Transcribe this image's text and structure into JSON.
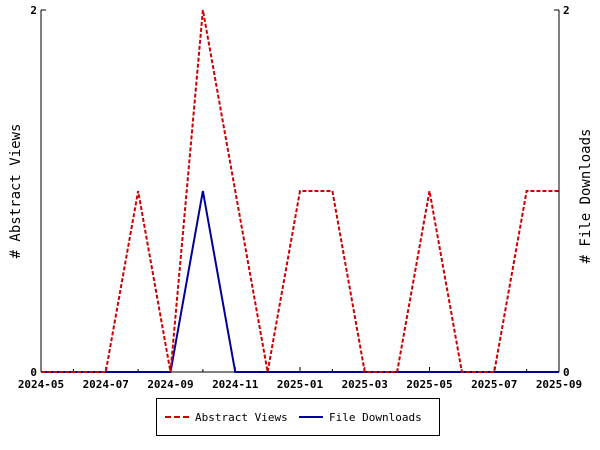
{
  "chart_data": {
    "type": "line",
    "x": [
      "2024-05",
      "2024-06",
      "2024-07",
      "2024-08",
      "2024-09",
      "2024-10",
      "2024-11",
      "2024-12",
      "2025-01",
      "2025-02",
      "2025-03",
      "2025-04",
      "2025-05",
      "2025-06",
      "2025-07",
      "2025-08",
      "2025-09"
    ],
    "x_tick_labels": [
      "2024-05",
      "2024-07",
      "2024-09",
      "2024-11",
      "2025-01",
      "2025-03",
      "2025-05",
      "2025-07",
      "2025-09"
    ],
    "ylabel": "# Abstract Views",
    "y2label": "# File Downloads",
    "ylim": [
      0,
      2
    ],
    "y2lim": [
      0,
      2
    ],
    "y_tick_labels": [
      "0",
      "2"
    ],
    "y2_tick_labels": [
      "0",
      "2"
    ],
    "grid": false,
    "legend_position": "bottom",
    "series": [
      {
        "name": "Abstract Views",
        "axis": "left",
        "color": "#cc0000",
        "style": "dashed",
        "values": [
          0,
          0,
          0,
          1,
          0,
          2,
          1,
          0,
          1,
          1,
          0,
          0,
          1,
          0,
          0,
          1,
          1
        ]
      },
      {
        "name": "File Downloads",
        "axis": "right",
        "color": "#000099",
        "style": "solid",
        "values": [
          0,
          0,
          0,
          0,
          0,
          1,
          0,
          0,
          0,
          0,
          0,
          0,
          0,
          0,
          0,
          0,
          0
        ]
      }
    ]
  }
}
